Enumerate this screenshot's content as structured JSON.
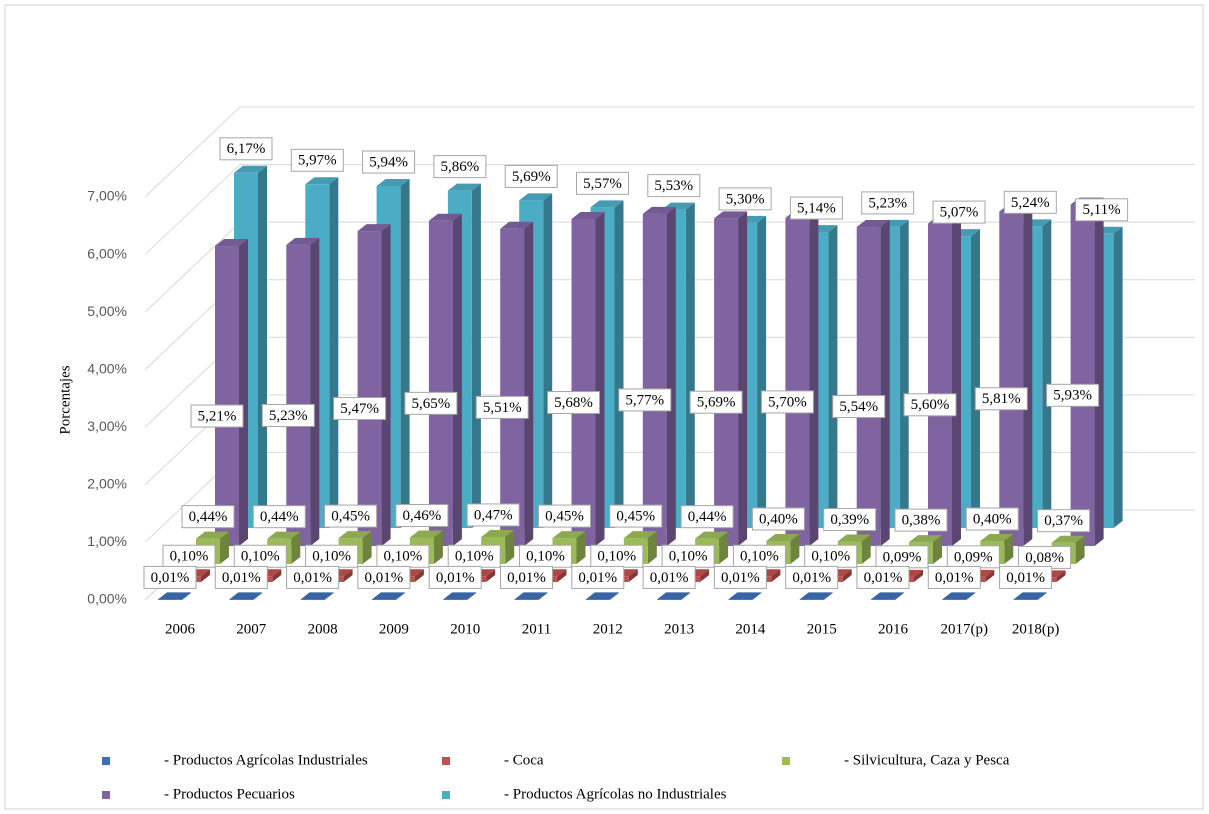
{
  "chart_data": {
    "type": "bar3d",
    "y_label": "Porcentajes",
    "categories": [
      "2006",
      "2007",
      "2008",
      "2009",
      "2010",
      "2011",
      "2012",
      "2013",
      "2014",
      "2015",
      "2016",
      "2017(p)",
      "2018(p)"
    ],
    "ylim": [
      0,
      7
    ],
    "yticks": [
      {
        "value": 0,
        "label": "0,00%"
      },
      {
        "value": 1,
        "label": "1,00%"
      },
      {
        "value": 2,
        "label": "2,00%"
      },
      {
        "value": 3,
        "label": "3,00%"
      },
      {
        "value": 4,
        "label": "4,00%"
      },
      {
        "value": 5,
        "label": "5,00%"
      },
      {
        "value": 6,
        "label": "6,00%"
      },
      {
        "value": 7,
        "label": "7,00%"
      }
    ],
    "grid": true,
    "series": [
      {
        "name": "- Productos Agrícolas Industriales",
        "color": "#3d6fb4",
        "values": [
          0.01,
          0.01,
          0.01,
          0.01,
          0.01,
          0.01,
          0.01,
          0.01,
          0.01,
          0.01,
          0.01,
          0.01,
          0.01
        ],
        "value_labels": [
          "0,01%",
          "0,01%",
          "0,01%",
          "0,01%",
          "0,01%",
          "0,01%",
          "0,01%",
          "0,01%",
          "0,01%",
          "0,01%",
          "0,01%",
          "0,01%",
          "0,01%"
        ]
      },
      {
        "name": "- Coca",
        "color": "#c0504d",
        "values": [
          0.1,
          0.1,
          0.1,
          0.1,
          0.1,
          0.1,
          0.1,
          0.1,
          0.1,
          0.1,
          0.09,
          0.09,
          0.08
        ],
        "value_labels": [
          "0,10%",
          "0,10%",
          "0,10%",
          "0,10%",
          "0,10%",
          "0,10%",
          "0,10%",
          "0,10%",
          "0,10%",
          "0,10%",
          "0,09%",
          "0,09%",
          "0,08%"
        ]
      },
      {
        "name": "- Silvicultura, Caza y Pesca",
        "color": "#9bbb59",
        "values": [
          0.44,
          0.44,
          0.45,
          0.46,
          0.47,
          0.45,
          0.45,
          0.44,
          0.4,
          0.39,
          0.38,
          0.4,
          0.37
        ],
        "value_labels": [
          "0,44%",
          "0,44%",
          "0,45%",
          "0,46%",
          "0,47%",
          "0,45%",
          "0,45%",
          "0,44%",
          "0,40%",
          "0,39%",
          "0,38%",
          "0,40%",
          "0,37%"
        ]
      },
      {
        "name": "- Productos Pecuarios",
        "color": "#8064a2",
        "values": [
          5.21,
          5.23,
          5.47,
          5.65,
          5.51,
          5.68,
          5.77,
          5.69,
          5.7,
          5.54,
          5.6,
          5.81,
          5.93
        ],
        "value_labels": [
          "5,21%",
          "5,23%",
          "5,47%",
          "5,65%",
          "5,51%",
          "5,68%",
          "5,77%",
          "5,69%",
          "5,70%",
          "5,54%",
          "5,60%",
          "5,81%",
          "5,93%"
        ]
      },
      {
        "name": "- Productos Agrícolas no Industriales",
        "color": "#4bacc6",
        "values": [
          6.17,
          5.97,
          5.94,
          5.86,
          5.69,
          5.57,
          5.53,
          5.3,
          5.14,
          5.23,
          5.07,
          5.24,
          5.11
        ],
        "value_labels": [
          "6,17%",
          "5,97%",
          "5,94%",
          "5,86%",
          "5,69%",
          "5,57%",
          "5,53%",
          "5,30%",
          "5,14%",
          "5,23%",
          "5,07%",
          "5,24%",
          "5,11%"
        ]
      }
    ]
  }
}
